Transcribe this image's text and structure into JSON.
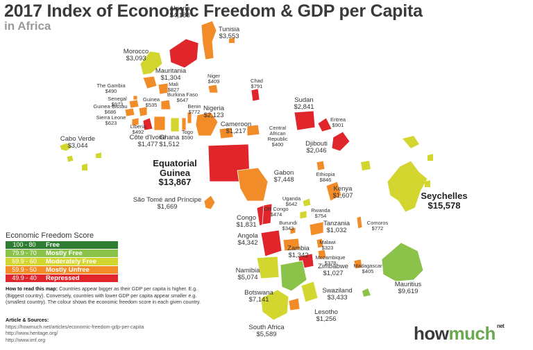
{
  "title": "2017 Index of Economic Freedom & GDP per Capita",
  "subtitle": "in Africa",
  "colors": {
    "free": "#2e7d32",
    "mostly_free": "#8bc34a",
    "moderately_free": "#d4d630",
    "mostly_unfree": "#f28c28",
    "repressed": "#e0262b"
  },
  "legend": {
    "title": "Economic Freedom Score",
    "items": [
      {
        "range": "100 - 80",
        "label": "Free",
        "color": "#2e7d32"
      },
      {
        "range": "79.9 - 70",
        "label": "Mostly Free",
        "color": "#8bc34a"
      },
      {
        "range": "69.9 - 60",
        "label": "Moderately Free",
        "color": "#d4d630"
      },
      {
        "range": "59.9 - 50",
        "label": "Mostly Unfree",
        "color": "#f28c28"
      },
      {
        "range": "49.9 - 40",
        "label": "Repressed",
        "color": "#e0262b"
      }
    ]
  },
  "how_to": {
    "heading": "How to read this map:",
    "text": " Countries appear bigger as their GDP per capita is higher. E.g. (Biggest country). Conversely, countries with lower GDP per capita appear smaller e.g. (smallest country). The colour shows the economic freedom score in each given country."
  },
  "sources": {
    "heading": "Article & Sources:",
    "lines": [
      "https://howmuch.net/articles/economic-freedom-gdp-per-capita",
      "http://www.heritage.org/",
      "http://www.imf.org"
    ]
  },
  "logo": {
    "how": "how",
    "much": "much",
    "net": "net"
  },
  "countries": [
    {
      "name": "Algeria",
      "value": "$4,188",
      "category": "repressed"
    },
    {
      "name": "Tunisia",
      "value": "$3,553",
      "category": "mostly_unfree"
    },
    {
      "name": "Morocco",
      "value": "$3,093",
      "category": "moderately_free"
    },
    {
      "name": "Mauritania",
      "value": "$1,304",
      "category": "mostly_unfree"
    },
    {
      "name": "Niger",
      "value": "$409",
      "category": "mostly_unfree"
    },
    {
      "name": "Chad",
      "value": "$791",
      "category": "repressed"
    },
    {
      "name": "Mali",
      "value": "$827",
      "category": "mostly_unfree"
    },
    {
      "name": "The Gambia",
      "value": "$490",
      "category": "mostly_unfree"
    },
    {
      "name": "Senegal",
      "value": "$973",
      "category": "mostly_unfree"
    },
    {
      "name": "Guinea-Bissau",
      "value": "$686",
      "category": "mostly_unfree"
    },
    {
      "name": "Guinea",
      "value": "$535",
      "category": "mostly_unfree"
    },
    {
      "name": "Burkina Faso",
      "value": "$647",
      "category": "mostly_unfree"
    },
    {
      "name": "Benin",
      "value": "$772",
      "category": "mostly_unfree"
    },
    {
      "name": "Nigeria",
      "value": "$2,123",
      "category": "mostly_unfree"
    },
    {
      "name": "Sierra Leone",
      "value": "$623",
      "category": "mostly_unfree"
    },
    {
      "name": "Liberia",
      "value": "$492",
      "category": "repressed"
    },
    {
      "name": "Côte d'Ivoire",
      "value": "$1,477",
      "category": "mostly_unfree"
    },
    {
      "name": "Ghana",
      "value": "$1,512",
      "category": "moderately_free"
    },
    {
      "name": "Togo",
      "value": "$590",
      "category": "mostly_unfree"
    },
    {
      "name": "Cameroon",
      "value": "$1,217",
      "category": "mostly_unfree"
    },
    {
      "name": "Central African Republic",
      "value": "$400",
      "category": "mostly_unfree"
    },
    {
      "name": "Sudan",
      "value": "$2,841",
      "category": "repressed"
    },
    {
      "name": "Eritrea",
      "value": "$901",
      "category": "repressed"
    },
    {
      "name": "Djibouti",
      "value": "$2,046",
      "category": "repressed"
    },
    {
      "name": "Cabo Verde",
      "value": "$3,044",
      "category": "moderately_free"
    },
    {
      "name": "Equatorial Guinea",
      "value": "$13,867",
      "category": "repressed"
    },
    {
      "name": "Gabon",
      "value": "$7,448",
      "category": "mostly_unfree"
    },
    {
      "name": "Ethiopia",
      "value": "$846",
      "category": "mostly_unfree"
    },
    {
      "name": "Kenya",
      "value": "$1,607",
      "category": "mostly_unfree"
    },
    {
      "name": "Seychelles",
      "value": "$15,578",
      "category": "moderately_free"
    },
    {
      "name": "São Tomé and Príncipe",
      "value": "$1,669",
      "category": "mostly_unfree"
    },
    {
      "name": "Uganda",
      "value": "$642",
      "category": "moderately_free"
    },
    {
      "name": "Rwanda",
      "value": "$754",
      "category": "moderately_free"
    },
    {
      "name": "DR Congo",
      "value": "$474",
      "category": "repressed"
    },
    {
      "name": "Congo",
      "value": "$1,831",
      "category": "repressed"
    },
    {
      "name": "Burundi",
      "value": "$343",
      "category": "mostly_unfree"
    },
    {
      "name": "Tanzania",
      "value": "$1,032",
      "category": "mostly_unfree"
    },
    {
      "name": "Comoros",
      "value": "$772",
      "category": "mostly_unfree"
    },
    {
      "name": "Angola",
      "value": "$4,342",
      "category": "repressed"
    },
    {
      "name": "Malawi",
      "value": "$323",
      "category": "mostly_unfree"
    },
    {
      "name": "Zambia",
      "value": "$1,342",
      "category": "mostly_unfree"
    },
    {
      "name": "Mozambique",
      "value": "$378",
      "category": "mostly_unfree"
    },
    {
      "name": "Zimbabwe",
      "value": "$1,027",
      "category": "repressed"
    },
    {
      "name": "Madagascar",
      "value": "$405",
      "category": "mostly_unfree"
    },
    {
      "name": "Namibia",
      "value": "$5,074",
      "category": "moderately_free"
    },
    {
      "name": "Mauritius",
      "value": "$9,619",
      "category": "mostly_free"
    },
    {
      "name": "Botswana",
      "value": "$7,141",
      "category": "mostly_free"
    },
    {
      "name": "Swaziland",
      "value": "$3,433",
      "category": "moderately_free"
    },
    {
      "name": "Lesotho",
      "value": "$1,256",
      "category": "mostly_unfree"
    },
    {
      "name": "South Africa",
      "value": "$5,589",
      "category": "moderately_free"
    }
  ]
}
